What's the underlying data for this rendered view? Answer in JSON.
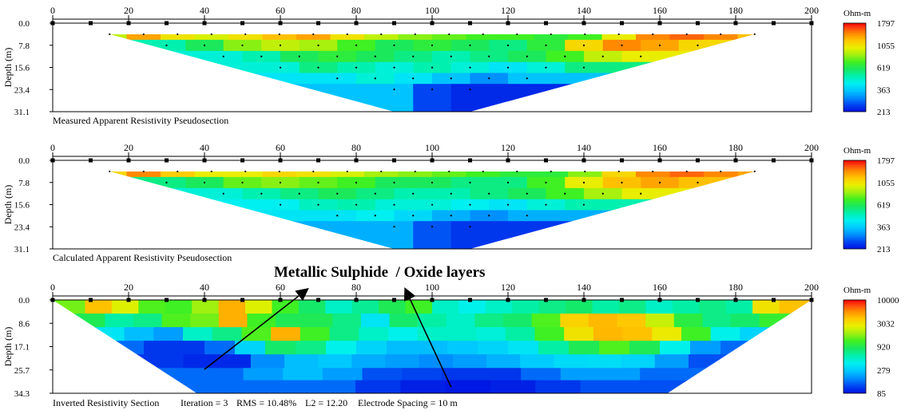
{
  "chart_data": [
    {
      "type": "heatmap",
      "title": "Measured Apparent Resistivity Pseudosection",
      "ylabel": "Depth (m)",
      "xlim": [
        0,
        200
      ],
      "ylim": [
        0,
        31.1
      ],
      "x_ticks": [
        "0",
        "20",
        "40",
        "60",
        "80",
        "100",
        "120",
        "140",
        "160",
        "180",
        "200"
      ],
      "y_ticks": [
        "0.0",
        "7.8",
        "15.6",
        "23.4",
        "31.1"
      ],
      "colorbar": {
        "title": "Ohm-m",
        "labels": [
          "1797",
          "1055",
          "619",
          "363",
          "213"
        ],
        "range": [
          213,
          1797
        ]
      },
      "electrodes_x": [
        0,
        10,
        20,
        30,
        40,
        50,
        60,
        70,
        80,
        90,
        100,
        110,
        120,
        130,
        140,
        150,
        160,
        170,
        180,
        190,
        200
      ],
      "data_levels": [
        {
          "depth": 3.9,
          "x_range": [
            15,
            185
          ],
          "values": [
            900,
            1300,
            1050,
            950,
            1050,
            1200,
            1300,
            1050,
            900,
            800,
            750,
            700,
            700,
            650,
            700,
            1000,
            1400,
            1500,
            1400,
            1200
          ]
        },
        {
          "depth": 7.8,
          "x_range": [
            30,
            170
          ],
          "values": [
            500,
            600,
            800,
            900,
            850,
            700,
            600,
            650,
            600,
            550,
            650,
            1100,
            1400,
            1300,
            1100
          ]
        },
        {
          "depth": 11.7,
          "x_range": [
            45,
            155
          ],
          "values": [
            450,
            500,
            600,
            650,
            600,
            550,
            500,
            550,
            600,
            700,
            900,
            1000
          ]
        },
        {
          "depth": 15.6,
          "x_range": [
            60,
            140
          ],
          "values": [
            450,
            550,
            500,
            450,
            500,
            450,
            400,
            450,
            550
          ]
        },
        {
          "depth": 19.4,
          "x_range": [
            75,
            125
          ],
          "values": [
            400,
            450,
            400,
            350,
            300,
            350
          ]
        },
        {
          "depth": 23.3,
          "x_range": [
            90,
            110
          ],
          "values": [
            350,
            250,
            230
          ]
        }
      ],
      "footer": "Measured Apparent Resistivity Pseudosection"
    },
    {
      "type": "heatmap",
      "title": "Calculated Apparent Resistivity Pseudosection",
      "ylabel": "Depth (m)",
      "xlim": [
        0,
        200
      ],
      "ylim": [
        0,
        31.1
      ],
      "x_ticks": [
        "0",
        "20",
        "40",
        "60",
        "80",
        "100",
        "120",
        "140",
        "160",
        "180",
        "200"
      ],
      "y_ticks": [
        "0.0",
        "7.8",
        "15.6",
        "23.4",
        "31.1"
      ],
      "colorbar": {
        "title": "Ohm-m",
        "labels": [
          "1797",
          "1055",
          "619",
          "363",
          "213"
        ],
        "range": [
          213,
          1797
        ]
      },
      "electrodes_x": [
        0,
        10,
        20,
        30,
        40,
        50,
        60,
        70,
        80,
        90,
        100,
        110,
        120,
        130,
        140,
        150,
        160,
        170,
        180,
        190,
        200
      ],
      "data_levels": [
        {
          "depth": 3.9,
          "x_range": [
            15,
            185
          ],
          "values": [
            1100,
            1400,
            1150,
            1000,
            1000,
            1100,
            1050,
            950,
            850,
            800,
            750,
            700,
            650,
            650,
            800,
            1100,
            1400,
            1500,
            1400,
            1300
          ]
        },
        {
          "depth": 7.8,
          "x_range": [
            30,
            170
          ],
          "values": [
            550,
            600,
            750,
            800,
            750,
            700,
            600,
            600,
            550,
            550,
            700,
            1000,
            1200,
            1300,
            1200
          ]
        },
        {
          "depth": 11.7,
          "x_range": [
            45,
            155
          ],
          "values": [
            450,
            500,
            550,
            600,
            550,
            500,
            500,
            550,
            600,
            700,
            850,
            1000
          ]
        },
        {
          "depth": 15.6,
          "x_range": [
            60,
            140
          ],
          "values": [
            420,
            480,
            500,
            450,
            450,
            420,
            400,
            450,
            500
          ]
        },
        {
          "depth": 19.4,
          "x_range": [
            75,
            125
          ],
          "values": [
            400,
            420,
            380,
            330,
            300,
            330
          ]
        },
        {
          "depth": 23.3,
          "x_range": [
            90,
            110
          ],
          "values": [
            330,
            260,
            240
          ]
        }
      ],
      "footer": "Calculated Apparent Resistivity Pseudosection"
    },
    {
      "type": "heatmap",
      "title": "Inverted Resistivity Section",
      "ylabel": "Depth (m)",
      "xlim": [
        0,
        200
      ],
      "ylim": [
        0,
        34.3
      ],
      "x_ticks": [
        "0",
        "20",
        "40",
        "60",
        "80",
        "100",
        "120",
        "140",
        "160",
        "180",
        "200"
      ],
      "y_ticks": [
        "0.0",
        "8.6",
        "17.1",
        "25.7",
        "34.3"
      ],
      "colorbar": {
        "title": "Ohm-m",
        "labels": [
          "10000",
          "3032",
          "920",
          "279",
          "85"
        ],
        "range": [
          85,
          10000
        ]
      },
      "electrodes_x": [
        0,
        10,
        20,
        30,
        40,
        50,
        60,
        70,
        80,
        90,
        100,
        110,
        120,
        130,
        140,
        150,
        160,
        170,
        180,
        190,
        200
      ],
      "model_layers": [
        {
          "depth": 2.5,
          "x_range": [
            5,
            195
          ],
          "values": [
            1500,
            4000,
            2500,
            1300,
            1200,
            1800,
            4500,
            2500,
            1200,
            800,
            500,
            650,
            900,
            1200,
            500,
            400,
            500,
            600,
            700,
            800,
            600,
            700,
            500,
            600,
            700,
            600,
            3000,
            4000
          ]
        },
        {
          "depth": 7.5,
          "x_range": [
            10,
            190
          ],
          "values": [
            900,
            600,
            700,
            1300,
            1500,
            4500,
            1200,
            900,
            900,
            700,
            350,
            800,
            600,
            500,
            700,
            800,
            1300,
            3500,
            4200,
            3800,
            2200,
            1000,
            700,
            800,
            1100
          ]
        },
        {
          "depth": 12.5,
          "x_range": [
            15,
            185
          ],
          "values": [
            350,
            250,
            200,
            500,
            700,
            1300,
            4500,
            1200,
            700,
            500,
            400,
            500,
            500,
            450,
            600,
            1200,
            3000,
            4300,
            4000,
            2800,
            1200,
            400,
            300
          ]
        },
        {
          "depth": 17.5,
          "x_range": [
            20,
            180
          ],
          "values": [
            150,
            110,
            110,
            150,
            300,
            800,
            700,
            400,
            300,
            250,
            250,
            270,
            300,
            350,
            600,
            900,
            1300,
            900,
            400,
            200,
            150
          ]
        },
        {
          "depth": 22.5,
          "x_range": [
            30,
            172
          ],
          "values": [
            110,
            100,
            100,
            180,
            250,
            270,
            220,
            200,
            180,
            200,
            230,
            280,
            320,
            330,
            300,
            200,
            130
          ]
        },
        {
          "depth": 27.5,
          "x_range": [
            45,
            160
          ],
          "values": [
            150,
            200,
            250,
            200,
            130,
            120,
            110,
            110,
            150,
            200,
            200,
            150
          ]
        },
        {
          "depth": 31.5,
          "x_range": [
            62,
            145
          ],
          "values": [
            150,
            150,
            110,
            95,
            90,
            95,
            110,
            130
          ]
        }
      ],
      "footer": {
        "name": "Inverted Resistivity Section",
        "iteration": "Iteration = 3",
        "rms": "RMS = 10.48%",
        "l2": "L2 = 12.20",
        "spacing": "Electrode Spacing = 10 m"
      }
    }
  ],
  "annotation": {
    "text": "Metallic Sulphide  / Oxide layers",
    "arrows": [
      {
        "from": [
          40,
          25.5
        ],
        "to": [
          67,
          0
        ]
      },
      {
        "from": [
          105,
          32
        ],
        "to": [
          93,
          0
        ]
      }
    ]
  }
}
